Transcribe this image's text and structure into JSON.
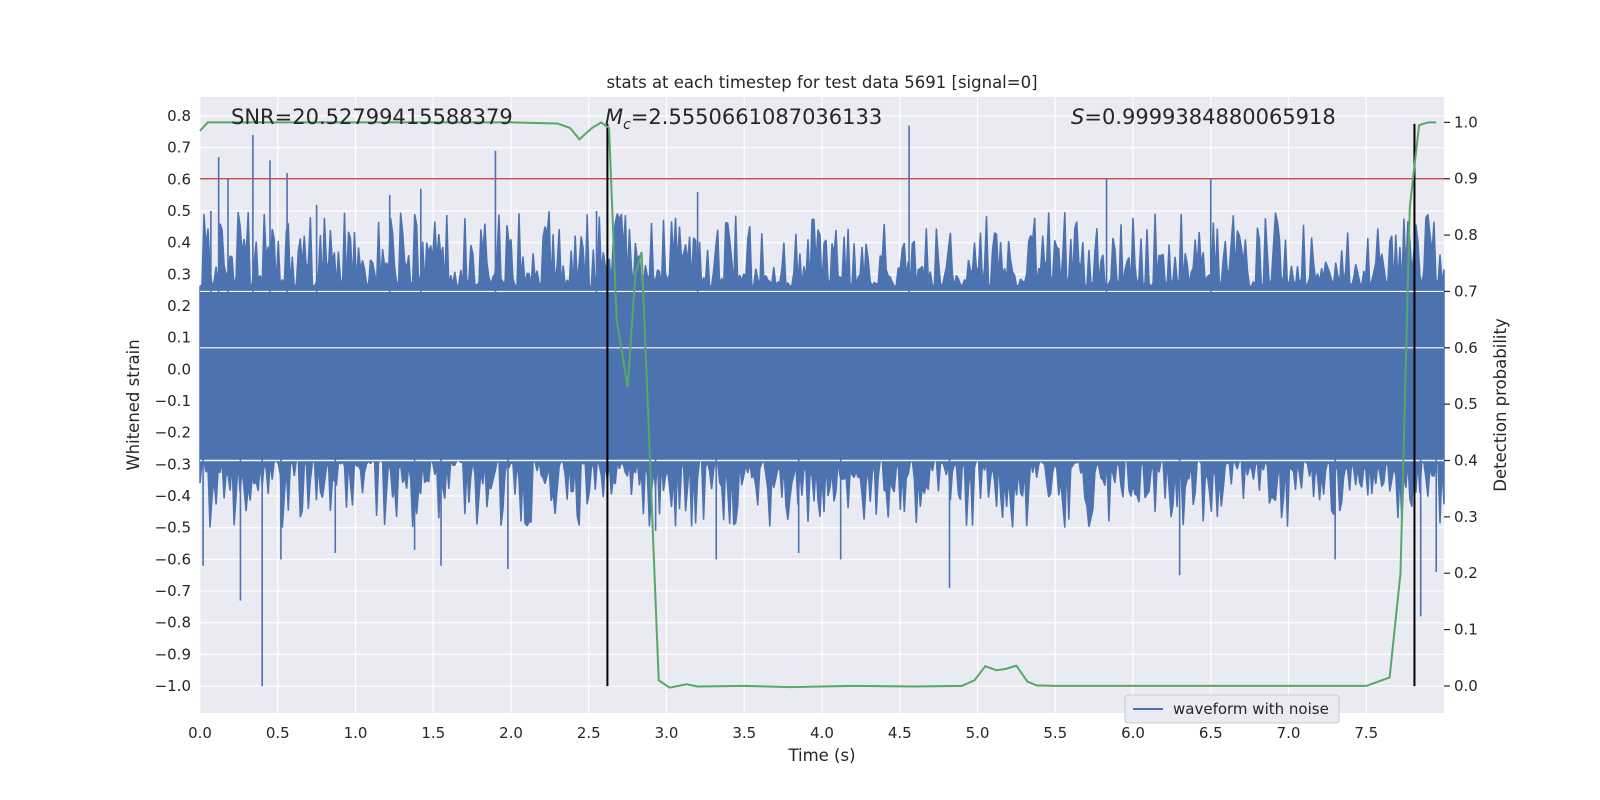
{
  "chart_data": {
    "type": "line",
    "title": "stats at each timestep for test data 5691 [signal=0]",
    "xlabel": "Time (s)",
    "ylabel": "Whitened strain",
    "y2label": "Detection probability",
    "xlim": [
      0.0,
      8.0
    ],
    "ylim": [
      -1.085,
      0.86
    ],
    "y2lim": [
      -0.048,
      1.045
    ],
    "x_ticks": [
      0.0,
      0.5,
      1.0,
      1.5,
      2.0,
      2.5,
      3.0,
      3.5,
      4.0,
      4.5,
      5.0,
      5.5,
      6.0,
      6.5,
      7.0,
      7.5
    ],
    "x_tick_labels": [
      "0.0",
      "0.5",
      "1.0",
      "1.5",
      "2.0",
      "2.5",
      "3.0",
      "3.5",
      "4.0",
      "4.5",
      "5.0",
      "5.5",
      "6.0",
      "6.5",
      "7.0",
      "7.5"
    ],
    "y_ticks": [
      0.8,
      0.7,
      0.6,
      0.5,
      0.4,
      0.3,
      0.2,
      0.1,
      0.0,
      -0.1,
      -0.2,
      -0.3,
      -0.4,
      -0.5,
      -0.6,
      -0.7,
      -0.8,
      -0.9,
      -1.0
    ],
    "y_tick_labels": [
      "0.8",
      "0.7",
      "0.6",
      "0.5",
      "0.4",
      "0.3",
      "0.2",
      "0.1",
      "0.0",
      "−0.1",
      "−0.2",
      "−0.3",
      "−0.4",
      "−0.5",
      "−0.6",
      "−0.7",
      "−0.8",
      "−0.9",
      "−1.0"
    ],
    "y2_ticks": [
      1.0,
      0.9,
      0.8,
      0.7,
      0.6,
      0.5,
      0.4,
      0.3,
      0.2,
      0.1,
      0.0
    ],
    "y2_tick_labels": [
      "1.0",
      "0.9",
      "0.8",
      "0.7",
      "0.6",
      "0.5",
      "0.4",
      "0.3",
      "0.2",
      "0.1",
      "0.0"
    ],
    "annotations": {
      "snr": "SNR=20.52799415588379",
      "mc_symbol": "M",
      "mc_sub": "c",
      "mc_value": "=2.5550661087036133",
      "s_symbol": "S",
      "s_value": "=0.9999384880065918"
    },
    "legend": {
      "label": "waveform with noise",
      "position": "lower-right"
    },
    "colors": {
      "axes_bg": "#eaeaf2",
      "grid": "#ffffff",
      "waveform": "#4c72b0",
      "probability": "#55a868",
      "threshold": "#c44e52",
      "marker": "#000000"
    },
    "waveform_series": {
      "name": "waveform with noise",
      "axis": "left",
      "core_upper": 0.22,
      "core_lower": -0.25,
      "envelope_upper": 0.5,
      "envelope_lower": -0.5,
      "spikes": [
        {
          "x": 0.02,
          "y": -0.62
        },
        {
          "x": 0.07,
          "y": 0.5
        },
        {
          "x": 0.12,
          "y": 0.67
        },
        {
          "x": 0.18,
          "y": 0.6
        },
        {
          "x": 0.26,
          "y": -0.73
        },
        {
          "x": 0.34,
          "y": 0.74
        },
        {
          "x": 0.4,
          "y": -1.0
        },
        {
          "x": 0.45,
          "y": 0.66
        },
        {
          "x": 0.52,
          "y": -0.6
        },
        {
          "x": 0.56,
          "y": 0.62
        },
        {
          "x": 0.75,
          "y": 0.52
        },
        {
          "x": 0.87,
          "y": -0.58
        },
        {
          "x": 1.22,
          "y": 0.55
        },
        {
          "x": 1.38,
          "y": -0.57
        },
        {
          "x": 1.42,
          "y": 0.57
        },
        {
          "x": 1.55,
          "y": -0.62
        },
        {
          "x": 1.9,
          "y": 0.69
        },
        {
          "x": 1.98,
          "y": -0.63
        },
        {
          "x": 2.55,
          "y": 0.5
        },
        {
          "x": 2.93,
          "y": -0.51
        },
        {
          "x": 3.2,
          "y": 0.56
        },
        {
          "x": 3.32,
          "y": -0.6
        },
        {
          "x": 3.85,
          "y": -0.58
        },
        {
          "x": 4.12,
          "y": -0.6
        },
        {
          "x": 4.56,
          "y": 0.77
        },
        {
          "x": 4.82,
          "y": -0.69
        },
        {
          "x": 5.83,
          "y": 0.6
        },
        {
          "x": 6.3,
          "y": -0.65
        },
        {
          "x": 6.5,
          "y": 0.6
        },
        {
          "x": 7.3,
          "y": -0.6
        },
        {
          "x": 7.85,
          "y": -0.78
        },
        {
          "x": 7.95,
          "y": -0.64
        }
      ]
    },
    "probability_series": {
      "name": "detection probability",
      "axis": "right",
      "x": [
        0.0,
        0.05,
        0.1,
        0.5,
        1.0,
        1.5,
        2.0,
        2.3,
        2.38,
        2.44,
        2.52,
        2.58,
        2.63,
        2.68,
        2.75,
        2.8,
        2.84,
        2.88,
        2.95,
        3.02,
        3.13,
        3.2,
        3.5,
        3.8,
        4.2,
        4.6,
        4.9,
        4.98,
        5.05,
        5.12,
        5.18,
        5.25,
        5.32,
        5.38,
        5.5,
        5.6,
        6.0,
        6.5,
        7.0,
        7.5,
        7.65,
        7.72,
        7.78,
        7.84,
        7.9,
        7.95
      ],
      "y": [
        0.985,
        1.0,
        1.0,
        1.0,
        1.0,
        1.0,
        1.0,
        0.998,
        0.99,
        0.97,
        0.99,
        1.0,
        0.99,
        0.65,
        0.53,
        0.73,
        0.77,
        0.5,
        0.01,
        -0.003,
        0.003,
        -0.001,
        0.0,
        -0.002,
        0.0,
        -0.001,
        0.0,
        0.01,
        0.035,
        0.028,
        0.03,
        0.036,
        0.008,
        0.001,
        0.0,
        0.0,
        0.0,
        0.0,
        0.0,
        0.0,
        0.015,
        0.2,
        0.85,
        0.995,
        1.0,
        1.0
      ]
    },
    "threshold_line": {
      "axis": "right",
      "y": 0.9
    },
    "event_markers": {
      "x": [
        2.62,
        7.81
      ],
      "y_from": -1.0,
      "y_to": 0.775
    }
  }
}
